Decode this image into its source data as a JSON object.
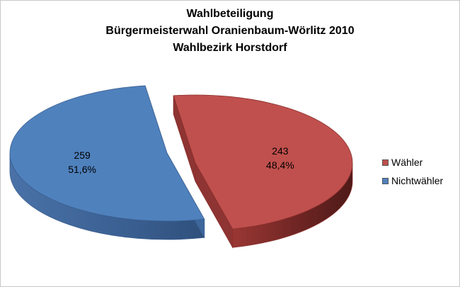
{
  "chart_data": {
    "type": "pie",
    "title_lines": [
      "Wahlbeteiligung",
      "Bürgermeisterwahl Oranienbaum-Wörlitz 2010",
      "Wahlbezirk Horstdorf"
    ],
    "slices": [
      {
        "name": "Wähler",
        "value": 243,
        "value_label": "243",
        "percent_label": "48,4%",
        "color": "#c0504d"
      },
      {
        "name": "Nichtwähler",
        "value": 259,
        "value_label": "259",
        "percent_label": "51,6%",
        "color": "#4f81bd"
      }
    ],
    "legend_position": "right",
    "exploded": true,
    "three_d": true
  }
}
